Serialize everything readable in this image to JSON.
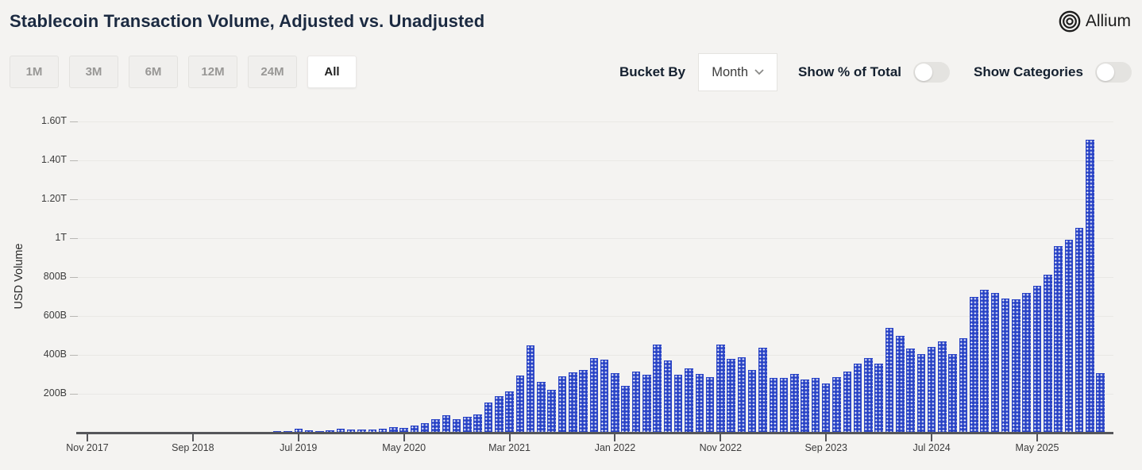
{
  "header": {
    "title": "Stablecoin Transaction Volume, Adjusted vs. Unadjusted",
    "brand": "Allium"
  },
  "controls": {
    "ranges": [
      {
        "label": "1M",
        "active": false
      },
      {
        "label": "3M",
        "active": false
      },
      {
        "label": "6M",
        "active": false
      },
      {
        "label": "12M",
        "active": false
      },
      {
        "label": "24M",
        "active": false
      },
      {
        "label": "All",
        "active": true
      }
    ],
    "bucket_by_label": "Bucket By",
    "bucket_value": "Month",
    "toggles": [
      {
        "label": "Show % of Total",
        "on": false
      },
      {
        "label": "Show Categories",
        "on": false
      }
    ]
  },
  "chart_data": {
    "type": "bar",
    "title": "Stablecoin Transaction Volume, Adjusted vs. Unadjusted",
    "ylabel": "USD Volume",
    "unit": "USD billions",
    "bar_color": "#2a44c6",
    "bar_pattern": "white-plus-dots",
    "grid": true,
    "legend": "none",
    "ylim": [
      0,
      1660
    ],
    "y_ticks": [
      {
        "label": "200B",
        "value": 200
      },
      {
        "label": "400B",
        "value": 400
      },
      {
        "label": "600B",
        "value": 600
      },
      {
        "label": "800B",
        "value": 800
      },
      {
        "label": "1T",
        "value": 1000
      },
      {
        "label": "1.20T",
        "value": 1200
      },
      {
        "label": "1.40T",
        "value": 1400
      },
      {
        "label": "1.60T",
        "value": 1600
      }
    ],
    "x_tick_every": 10,
    "x_tick_labels": [
      "Nov 2017",
      "Sep 2018",
      "Jul 2019",
      "May 2020",
      "Mar 2021",
      "Jan 2022",
      "Nov 2022",
      "Sep 2023",
      "Jul 2024",
      "May 2025"
    ],
    "categories": [
      "Nov 2017",
      "Dec 2017",
      "Jan 2018",
      "Feb 2018",
      "Mar 2018",
      "Apr 2018",
      "May 2018",
      "Jun 2018",
      "Jul 2018",
      "Aug 2018",
      "Sep 2018",
      "Oct 2018",
      "Nov 2018",
      "Dec 2018",
      "Jan 2019",
      "Feb 2019",
      "Mar 2019",
      "Apr 2019",
      "May 2019",
      "Jun 2019",
      "Jul 2019",
      "Aug 2019",
      "Sep 2019",
      "Oct 2019",
      "Nov 2019",
      "Dec 2019",
      "Jan 2020",
      "Feb 2020",
      "Mar 2020",
      "Apr 2020",
      "May 2020",
      "Jun 2020",
      "Jul 2020",
      "Aug 2020",
      "Sep 2020",
      "Oct 2020",
      "Nov 2020",
      "Dec 2020",
      "Jan 2021",
      "Feb 2021",
      "Mar 2021",
      "Apr 2021",
      "May 2021",
      "Jun 2021",
      "Jul 2021",
      "Aug 2021",
      "Sep 2021",
      "Oct 2021",
      "Nov 2021",
      "Dec 2021",
      "Jan 2022",
      "Feb 2022",
      "Mar 2022",
      "Apr 2022",
      "May 2022",
      "Jun 2022",
      "Jul 2022",
      "Aug 2022",
      "Sep 2022",
      "Oct 2022",
      "Nov 2022",
      "Dec 2022",
      "Jan 2023",
      "Feb 2023",
      "Mar 2023",
      "Apr 2023",
      "May 2023",
      "Jun 2023",
      "Jul 2023",
      "Aug 2023",
      "Sep 2023",
      "Oct 2023",
      "Nov 2023",
      "Dec 2023",
      "Jan 2024",
      "Feb 2024",
      "Mar 2024",
      "Apr 2024",
      "May 2024",
      "Jun 2024",
      "Jul 2024",
      "Aug 2024",
      "Sep 2024",
      "Oct 2024",
      "Nov 2024",
      "Dec 2024",
      "Jan 2025",
      "Feb 2025",
      "Mar 2025",
      "Apr 2025",
      "May 2025",
      "Jun 2025",
      "Jul 2025",
      "Aug 2025",
      "Sep 2025",
      "Oct 2025",
      "Nov 2025"
    ],
    "values": [
      1,
      2,
      2,
      1,
      1,
      1,
      1,
      2,
      2,
      2,
      3,
      3,
      4,
      3,
      3,
      4,
      5,
      6,
      7,
      8,
      20,
      12,
      9,
      12,
      19,
      16,
      17,
      17,
      21,
      28,
      25,
      36,
      50,
      68,
      90,
      70,
      80,
      94,
      155,
      188,
      212,
      296,
      448,
      260,
      222,
      292,
      312,
      322,
      386,
      378,
      308,
      243,
      316,
      300,
      455,
      373,
      300,
      329,
      302,
      288,
      452,
      382,
      390,
      321,
      438,
      284,
      280,
      302,
      272,
      284,
      252,
      288,
      316,
      357,
      386,
      357,
      538,
      498,
      434,
      406,
      442,
      471,
      406,
      487,
      700,
      734,
      718,
      690,
      687,
      718,
      755,
      812,
      962,
      995,
      1056,
      1510,
      305
    ]
  }
}
